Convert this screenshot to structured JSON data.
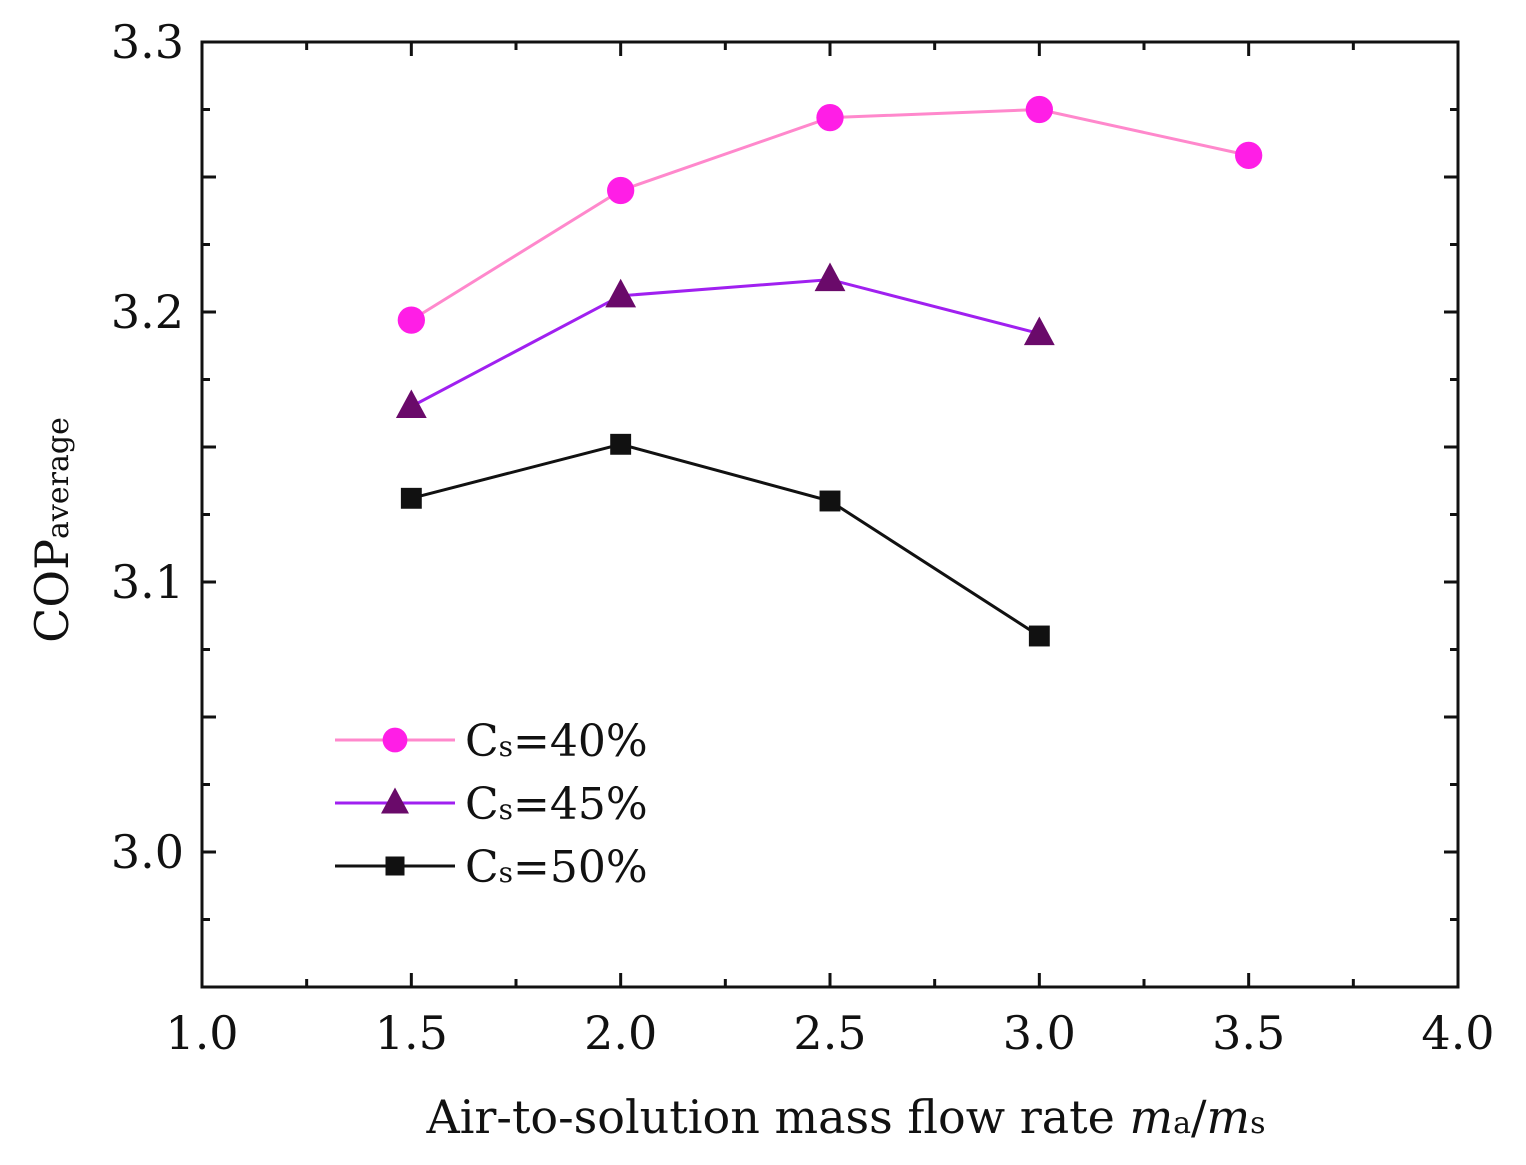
{
  "chart_data": {
    "type": "line",
    "title": "",
    "xlabel": {
      "main": "Air-to-solution mass flow rate ",
      "v1": "m",
      "s1": "a",
      "slash": "/",
      "v2": "m",
      "s2": "s"
    },
    "ylabel": {
      "main": "COP",
      "sub": "average"
    },
    "xlim": [
      1.0,
      4.0
    ],
    "ylim": [
      2.95,
      3.3
    ],
    "xticks": [
      "1.0",
      "1.5",
      "2.0",
      "2.5",
      "3.0",
      "3.5",
      "4.0"
    ],
    "yticks": [
      "3.0",
      "3.1",
      "3.2",
      "3.3"
    ],
    "grid": false,
    "legend_position": "lower-left",
    "series": [
      {
        "name": "Cs=40%",
        "legend": {
          "base": "C",
          "sub": "s",
          "rest": "=40%"
        },
        "marker": "circle",
        "line_color": "#ff88cc",
        "marker_color": "#ff1ee6",
        "x": [
          1.5,
          2.0,
          2.5,
          3.0,
          3.5
        ],
        "y": [
          3.197,
          3.245,
          3.272,
          3.275,
          3.258
        ]
      },
      {
        "name": "Cs=45%",
        "legend": {
          "base": "C",
          "sub": "s",
          "rest": "=45%"
        },
        "marker": "triangle",
        "line_color": "#a020f0",
        "marker_color": "#6a0a6a",
        "x": [
          1.5,
          2.0,
          2.5,
          3.0
        ],
        "y": [
          3.165,
          3.206,
          3.212,
          3.192
        ]
      },
      {
        "name": "Cs=50%",
        "legend": {
          "base": "C",
          "sub": "s",
          "rest": "=50%"
        },
        "marker": "square",
        "line_color": "#111111",
        "marker_color": "#111111",
        "x": [
          1.5,
          2.0,
          2.5,
          3.0
        ],
        "y": [
          3.131,
          3.151,
          3.13,
          3.08
        ]
      }
    ]
  }
}
